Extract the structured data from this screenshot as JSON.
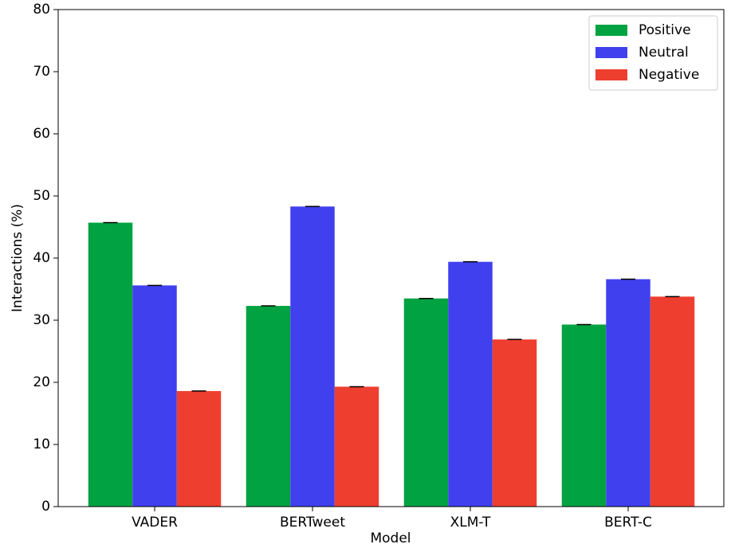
{
  "chart_data": {
    "type": "bar",
    "x_label": "Model",
    "y_label": "Interactions (%)",
    "categories": [
      "VADER",
      "BERTweet",
      "XLM-T",
      "BERT-C"
    ],
    "series": [
      {
        "name": "Positive",
        "color": "#00a241",
        "values": [
          45.7,
          32.3,
          33.5,
          29.3
        ]
      },
      {
        "name": "Neutral",
        "color": "#4040ee",
        "values": [
          35.6,
          48.3,
          39.4,
          36.6
        ]
      },
      {
        "name": "Negative",
        "color": "#ee3e2f",
        "values": [
          18.6,
          19.3,
          26.9,
          33.8
        ]
      }
    ],
    "ylim": [
      0,
      80
    ],
    "yticks": [
      0,
      10,
      20,
      30,
      40,
      50,
      60,
      70,
      80
    ],
    "legend": "upper right"
  }
}
